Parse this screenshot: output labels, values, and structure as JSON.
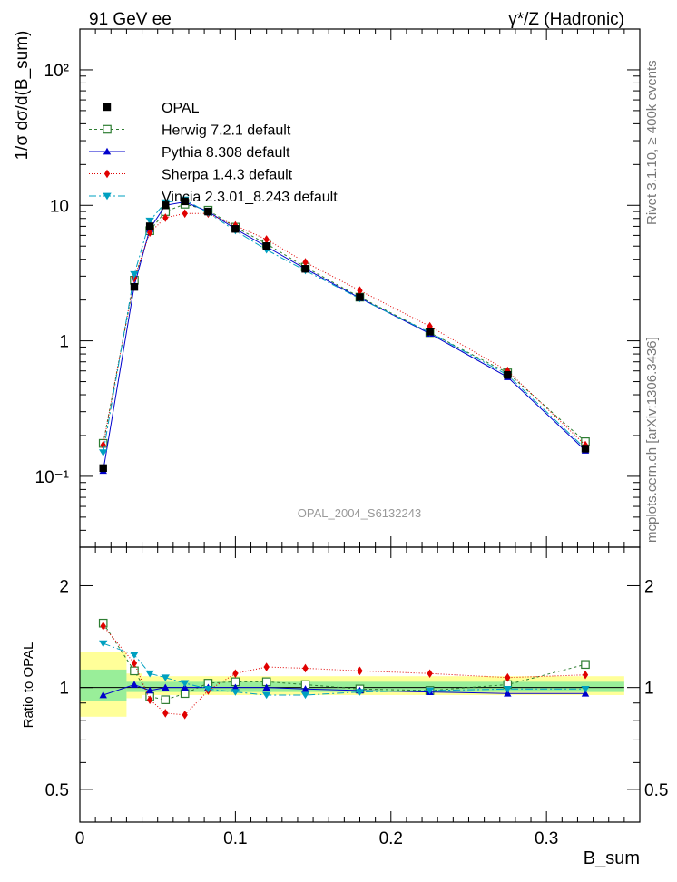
{
  "header": {
    "left": "91 GeV ee",
    "right": "γ*/Z (Hadronic)"
  },
  "side_labels": {
    "rivet": "Rivet 3.1.10, ≥ 400k events",
    "mcplots": "mcplots.cern.ch [arXiv:1306.3436]"
  },
  "watermark": "OPAL_2004_S6132243",
  "axes": {
    "ylabel_main": "1/σ dσ/d(B_sum)",
    "ylabel_ratio": "Ratio to OPAL",
    "xlabel": "B_sum",
    "xticks": [
      "0",
      "0.1",
      "0.2",
      "0.3"
    ],
    "yticks_main": [
      "10⁻¹",
      "1",
      "10",
      "10²"
    ],
    "yticks_ratio": [
      "0.5",
      "1",
      "2"
    ]
  },
  "chart_data": [
    {
      "type": "line",
      "panel": "main",
      "yscale": "log",
      "xlim": [
        0,
        0.36
      ],
      "ylim": [
        0.03,
        200
      ],
      "xlabel": "B_sum",
      "ylabel": "1/σ dσ/d(B_sum)",
      "legend_position": "top-left",
      "x": [
        0.015,
        0.035,
        0.045,
        0.055,
        0.0675,
        0.0825,
        0.1,
        0.12,
        0.145,
        0.18,
        0.225,
        0.275,
        0.325
      ],
      "data": {
        "name": "OPAL",
        "y": [
          0.115,
          2.5,
          7.0,
          10.0,
          10.7,
          9.0,
          6.7,
          5.0,
          3.4,
          2.1,
          1.17,
          0.56,
          0.16
        ],
        "band_total": [
          {
            "x0": 0.0,
            "x1": 0.03,
            "lo": 0.82,
            "hi": 1.27
          },
          {
            "x0": 0.03,
            "x1": 0.04,
            "lo": 0.93,
            "hi": 1.1
          },
          {
            "x0": 0.04,
            "x1": 0.35,
            "lo": 0.95,
            "hi": 1.08
          }
        ],
        "band_stat": [
          {
            "x0": 0.0,
            "x1": 0.03,
            "lo": 0.91,
            "hi": 1.13
          },
          {
            "x0": 0.03,
            "x1": 0.35,
            "lo": 0.97,
            "hi": 1.04
          }
        ]
      },
      "series": [
        {
          "name": "Herwig 7.2.1 default",
          "color": "#2e7d32",
          "marker": "open-square",
          "dash": "3,3",
          "y": [
            0.175,
            2.8,
            6.5,
            9.0,
            10.2,
            9.2,
            6.9,
            5.2,
            3.5,
            2.1,
            1.15,
            0.58,
            0.18
          ]
        },
        {
          "name": "Pythia 8.308 default",
          "color": "#0000cc",
          "marker": "triangle-up",
          "dash": "",
          "y": [
            0.11,
            2.55,
            6.7,
            10.0,
            10.6,
            9.0,
            6.7,
            4.95,
            3.4,
            2.07,
            1.13,
            0.54,
            0.155
          ]
        },
        {
          "name": "Sherpa 1.4.3 default",
          "color": "#e00000",
          "marker": "diamond",
          "dash": "1,2",
          "y": [
            0.17,
            2.9,
            6.3,
            8.1,
            8.7,
            8.7,
            7.1,
            5.6,
            3.8,
            2.35,
            1.28,
            0.6,
            0.17
          ]
        },
        {
          "name": "Vincia 2.3.01_8.243 default",
          "color": "#00a0c0",
          "marker": "triangle-down",
          "dash": "8,3,2,3",
          "y": [
            0.15,
            3.1,
            7.7,
            10.5,
            11.0,
            8.8,
            6.5,
            4.7,
            3.3,
            2.05,
            1.15,
            0.56,
            0.16
          ]
        }
      ]
    },
    {
      "type": "line",
      "panel": "ratio",
      "yscale": "log",
      "xlim": [
        0,
        0.36
      ],
      "ylim": [
        0.4,
        2.6
      ],
      "ylabel": "Ratio to OPAL",
      "x": [
        0.015,
        0.035,
        0.045,
        0.055,
        0.0675,
        0.0825,
        0.1,
        0.12,
        0.145,
        0.18,
        0.225,
        0.275,
        0.325
      ],
      "reference": 1,
      "series": [
        {
          "name": "Herwig 7.2.1 default",
          "y": [
            1.55,
            1.12,
            0.94,
            0.92,
            0.96,
            1.03,
            1.04,
            1.04,
            1.02,
            0.99,
            0.98,
            1.02,
            1.17
          ]
        },
        {
          "name": "Pythia 8.308 default",
          "y": [
            0.95,
            1.02,
            0.98,
            1.0,
            1.0,
            1.0,
            1.0,
            1.0,
            0.99,
            0.98,
            0.97,
            0.96,
            0.96
          ]
        },
        {
          "name": "Sherpa 1.4.3 default",
          "y": [
            1.52,
            1.18,
            0.92,
            0.84,
            0.83,
            0.98,
            1.1,
            1.15,
            1.14,
            1.12,
            1.1,
            1.07,
            1.09
          ]
        },
        {
          "name": "Vincia 2.3.01_8.243 default",
          "y": [
            1.35,
            1.25,
            1.1,
            1.07,
            1.03,
            0.99,
            0.97,
            0.95,
            0.95,
            0.97,
            0.98,
            0.99,
            0.99
          ]
        }
      ]
    }
  ]
}
